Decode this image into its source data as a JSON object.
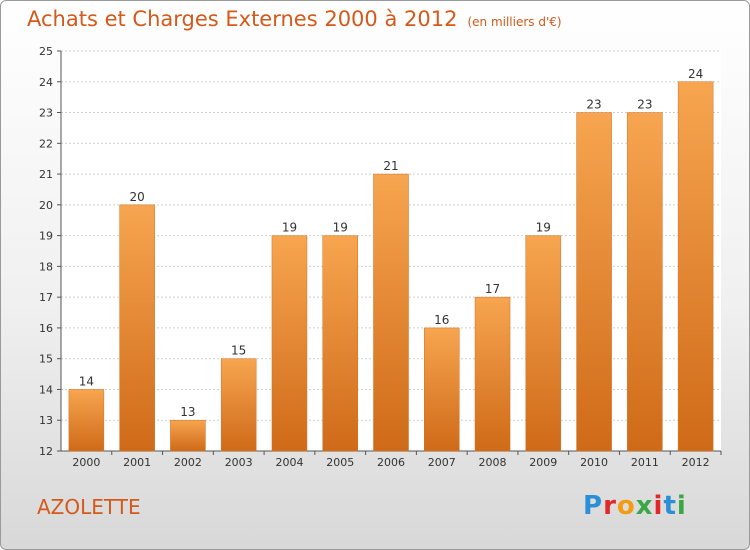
{
  "chart_data": {
    "type": "bar",
    "title": "Achats et Charges Externes 2000 à 2012",
    "unit": "(en milliers d'€)",
    "categories": [
      "2000",
      "2001",
      "2002",
      "2003",
      "2004",
      "2005",
      "2006",
      "2007",
      "2008",
      "2009",
      "2010",
      "2011",
      "2012"
    ],
    "values": [
      14,
      20,
      13,
      15,
      19,
      19,
      21,
      16,
      17,
      19,
      23,
      23,
      24
    ],
    "ylim": [
      12,
      25
    ],
    "yticks": [
      12,
      13,
      14,
      15,
      16,
      17,
      18,
      19,
      20,
      21,
      22,
      23,
      24,
      25
    ],
    "grid": true,
    "bar_color": "#f0913a",
    "xlabel": "",
    "ylabel": ""
  },
  "footer": {
    "place": "AZOLETTE",
    "logo_text": "Proxiti"
  }
}
